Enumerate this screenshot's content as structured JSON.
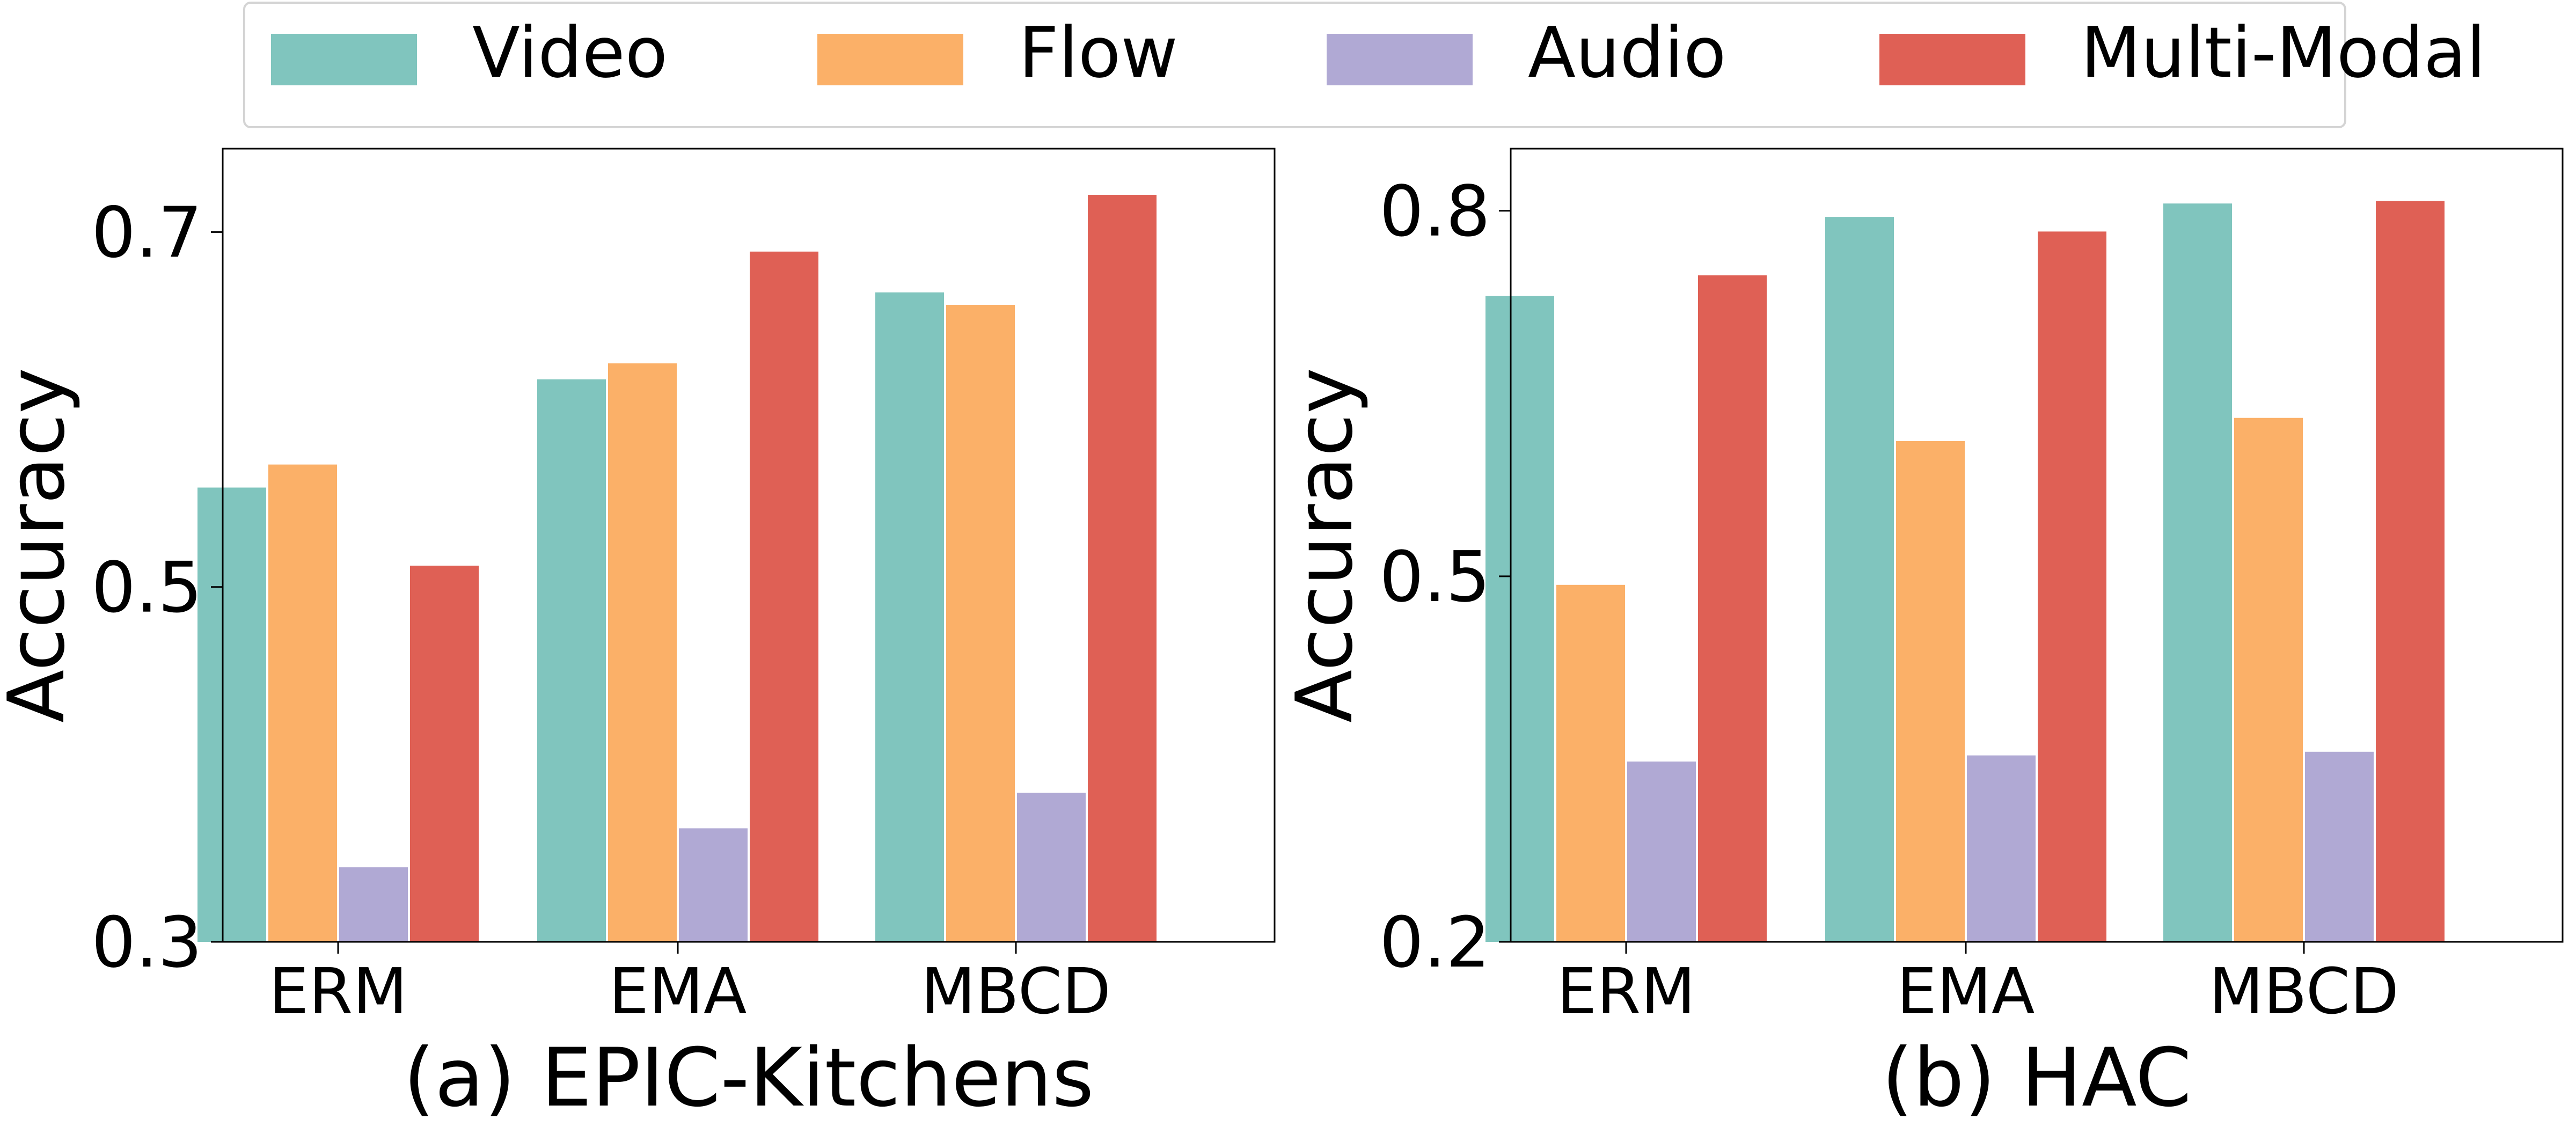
{
  "legend": {
    "location": "top-center",
    "items": [
      {
        "label": "Video",
        "color": "#80C5BE"
      },
      {
        "label": "Flow",
        "color": "#FBB068"
      },
      {
        "label": "Audio",
        "color": "#B0A9D4"
      },
      {
        "label": "Multi-Modal",
        "color": "#DF6055"
      }
    ]
  },
  "chart_data": [
    {
      "type": "bar",
      "title": "(a) EPIC-Kitchens",
      "xlabel": "(a) EPIC-Kitchens",
      "ylabel": "Accuracy",
      "categories": [
        "ERM",
        "EMA",
        "MBCD"
      ],
      "ylim": [
        0.3,
        0.747
      ],
      "yticks": [
        0.3,
        0.5,
        0.7
      ],
      "ytick_labels": [
        "0.3",
        "0.5",
        "0.7"
      ],
      "series": [
        {
          "name": "Video",
          "values": [
            0.556,
            0.617,
            0.666
          ]
        },
        {
          "name": "Flow",
          "values": [
            0.569,
            0.626,
            0.659
          ]
        },
        {
          "name": "Audio",
          "values": [
            0.342,
            0.364,
            0.384
          ]
        },
        {
          "name": "Multi-Modal",
          "values": [
            0.512,
            0.689,
            0.721
          ]
        }
      ]
    },
    {
      "type": "bar",
      "title": "(b) HAC",
      "xlabel": "(b) HAC",
      "ylabel": "Accuracy",
      "categories": [
        "ERM",
        "EMA",
        "MBCD"
      ],
      "ylim": [
        0.2,
        0.851
      ],
      "yticks": [
        0.2,
        0.5,
        0.8
      ],
      "ytick_labels": [
        "0.2",
        "0.5",
        "0.8"
      ],
      "series": [
        {
          "name": "Video",
          "values": [
            0.73,
            0.795,
            0.806
          ]
        },
        {
          "name": "Flow",
          "values": [
            0.493,
            0.611,
            0.63
          ]
        },
        {
          "name": "Audio",
          "values": [
            0.348,
            0.353,
            0.356
          ]
        },
        {
          "name": "Multi-Modal",
          "values": [
            0.747,
            0.783,
            0.808
          ]
        }
      ]
    }
  ]
}
